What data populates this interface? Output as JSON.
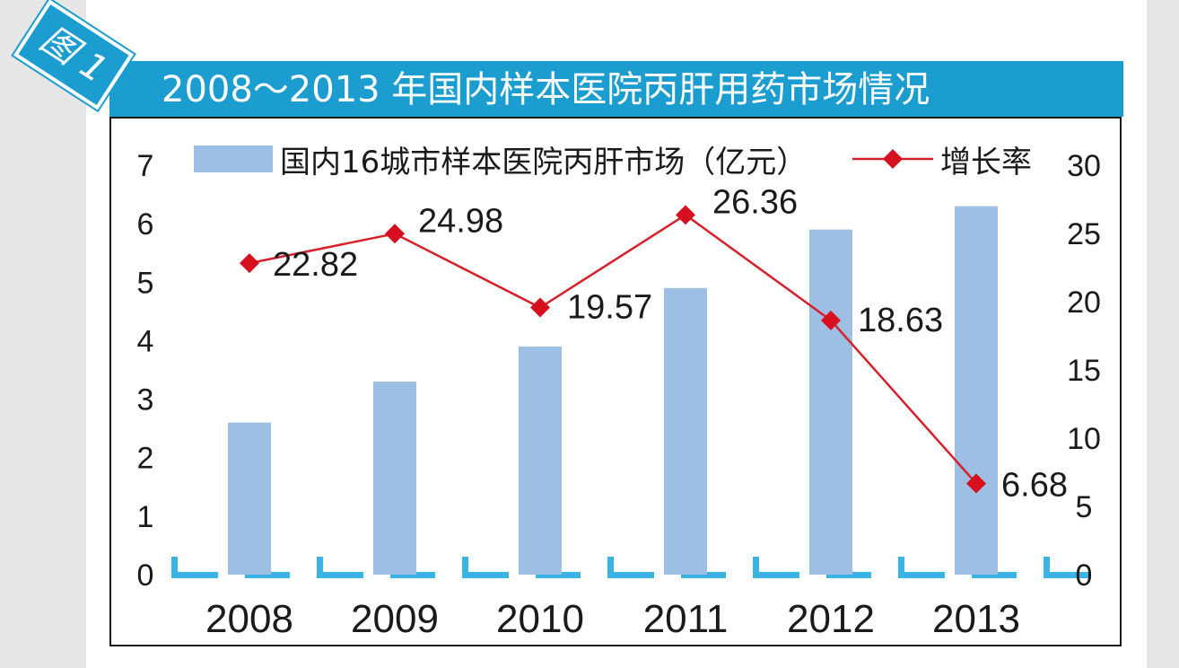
{
  "figure": {
    "badge": "图 1",
    "title": "2008～2013 年国内样本医院丙肝用药市场情况"
  },
  "colors": {
    "banner": "#1c9dd0",
    "bar": "#9dbfe3",
    "line": "#d6202a",
    "marker": "#d6101e",
    "axis_dash": "#3bb3e3"
  },
  "chart_data": {
    "type": "bar",
    "categories": [
      "2008",
      "2009",
      "2010",
      "2011",
      "2012",
      "2013"
    ],
    "series": [
      {
        "name": "国内16城市样本医院丙肝市场（亿元）",
        "type": "bar",
        "axis": "left",
        "values": [
          2.6,
          3.3,
          3.9,
          4.9,
          5.9,
          6.3
        ]
      },
      {
        "name": "增长率",
        "type": "line",
        "axis": "right",
        "values": [
          22.82,
          24.98,
          19.57,
          26.36,
          18.63,
          6.68
        ],
        "labels": [
          "22.82",
          "24.98",
          "19.57",
          "26.36",
          "18.63",
          "6.68"
        ]
      }
    ],
    "y_left": {
      "ticks": [
        "0",
        "1",
        "2",
        "3",
        "4",
        "5",
        "6",
        "7"
      ],
      "ylim": [
        0,
        7
      ]
    },
    "y_right": {
      "ticks": [
        "0",
        "5",
        "10",
        "15",
        "20",
        "25",
        "30"
      ],
      "ylim": [
        0,
        30
      ]
    },
    "legend_position": "top",
    "grid": false
  }
}
